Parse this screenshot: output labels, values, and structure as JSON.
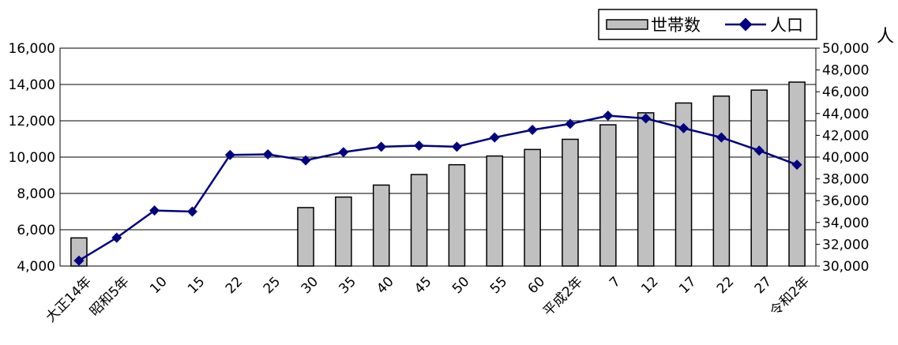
{
  "chart_data": {
    "type": "bar",
    "categories": [
      "大正14年",
      "昭和5年",
      "10",
      "15",
      "22",
      "25",
      "30",
      "35",
      "40",
      "45",
      "50",
      "55",
      "60",
      "平成2年",
      "7",
      "12",
      "17",
      "22",
      "27",
      "令和2年"
    ],
    "series": [
      {
        "name": "世帯数",
        "type": "bar",
        "axis": "left",
        "color": "#c0c0c0",
        "values": [
          5550,
          4000,
          4000,
          4000,
          4000,
          4000,
          7220,
          7800,
          8460,
          9040,
          9580,
          10060,
          10420,
          10980,
          11780,
          12440,
          12980,
          13360,
          13690,
          14130
        ]
      },
      {
        "name": "人口",
        "type": "line",
        "axis": "right",
        "color": "#000080",
        "values": [
          30500,
          32600,
          35100,
          35000,
          40200,
          40250,
          39700,
          40450,
          40950,
          41050,
          40950,
          41800,
          42500,
          43050,
          43800,
          43550,
          42650,
          41800,
          40600,
          39300
        ]
      }
    ],
    "y_left": {
      "ylim": [
        4000,
        16000
      ],
      "ticks": [
        "4,000",
        "6,000",
        "8,000",
        "10,000",
        "12,000",
        "14,000",
        "16,000"
      ]
    },
    "y_right": {
      "ylim": [
        30000,
        50000
      ],
      "ticks": [
        "30,000",
        "32,000",
        "34,000",
        "36,000",
        "38,000",
        "40,000",
        "42,000",
        "44,000",
        "46,000",
        "48,000",
        "50,000"
      ],
      "unit_label": "人"
    },
    "grid": true,
    "legend_position": "top-right"
  }
}
